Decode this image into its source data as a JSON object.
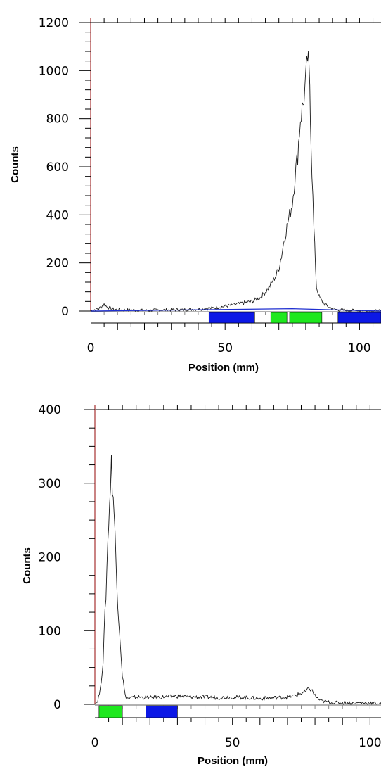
{
  "colors": {
    "trace": "#1a1a1a",
    "y_axis_line": "#b85a5a",
    "frame": "#000000",
    "baseline": "#1f2fd0",
    "region_blue": "#0c18e6",
    "region_green": "#1ee81e"
  },
  "chart_data": [
    {
      "type": "line",
      "title": "",
      "xlabel": "Position (mm)",
      "ylabel": "Counts",
      "xlim": [
        0,
        108
      ],
      "ylim": [
        0,
        1200
      ],
      "x_ticks": [
        "0",
        "50",
        "100"
      ],
      "y_ticks": [
        "0",
        "200",
        "400",
        "600",
        "800",
        "1000",
        "1200"
      ],
      "grid": false,
      "series": [
        {
          "x": [
            0,
            3,
            5,
            6,
            8,
            10,
            15,
            20,
            25,
            30,
            35,
            40,
            45,
            50,
            55,
            60,
            63,
            65,
            67,
            69,
            70,
            71,
            72,
            73,
            74,
            75,
            76,
            77,
            78,
            79,
            80,
            80.7,
            81.5,
            82,
            83,
            84,
            85,
            86,
            87,
            88,
            90,
            92,
            95,
            100,
            105,
            108
          ],
          "y": [
            2,
            10,
            28,
            18,
            8,
            6,
            4,
            3,
            4,
            5,
            6,
            8,
            12,
            20,
            30,
            40,
            55,
            80,
            110,
            150,
            180,
            230,
            300,
            350,
            400,
            450,
            560,
            650,
            800,
            860,
            950,
            1055,
            950,
            700,
            350,
            100,
            60,
            40,
            30,
            20,
            10,
            5,
            3,
            2,
            1,
            0
          ]
        }
      ],
      "baseline": {
        "x": [
          0,
          75,
          108
        ],
        "y": [
          0,
          10,
          0
        ]
      },
      "regions": [
        {
          "color": "blue",
          "start": 44,
          "end": 61
        },
        {
          "color": "green",
          "start": 67,
          "end": 73
        },
        {
          "color": "green",
          "start": 74,
          "end": 86
        },
        {
          "color": "blue",
          "start": 92,
          "end": 108
        }
      ]
    },
    {
      "type": "line",
      "title": "",
      "xlabel": "Position (mm)",
      "ylabel": "Counts",
      "xlim": [
        0,
        104
      ],
      "ylim": [
        0,
        400
      ],
      "x_ticks": [
        "0",
        "50",
        "100"
      ],
      "y_ticks": [
        "0",
        "100",
        "200",
        "300",
        "400"
      ],
      "grid": false,
      "series": [
        {
          "x": [
            0,
            1,
            2,
            3,
            4,
            5,
            6,
            7,
            8,
            9,
            10,
            11,
            12,
            15,
            20,
            25,
            30,
            35,
            40,
            45,
            50,
            55,
            60,
            65,
            70,
            73,
            75,
            77,
            78,
            79,
            80,
            81,
            82,
            85,
            90,
            95,
            100,
            104
          ],
          "y": [
            0,
            5,
            20,
            60,
            150,
            250,
            325,
            260,
            160,
            100,
            40,
            12,
            8,
            10,
            9,
            10,
            11,
            10,
            10,
            9,
            10,
            9,
            8,
            9,
            10,
            12,
            15,
            18,
            22,
            18,
            12,
            8,
            5,
            3,
            2,
            2,
            2,
            1
          ]
        }
      ],
      "regions": [
        {
          "color": "green",
          "start": 1.5,
          "end": 10
        },
        {
          "color": "blue",
          "start": 18.5,
          "end": 30
        }
      ]
    }
  ]
}
